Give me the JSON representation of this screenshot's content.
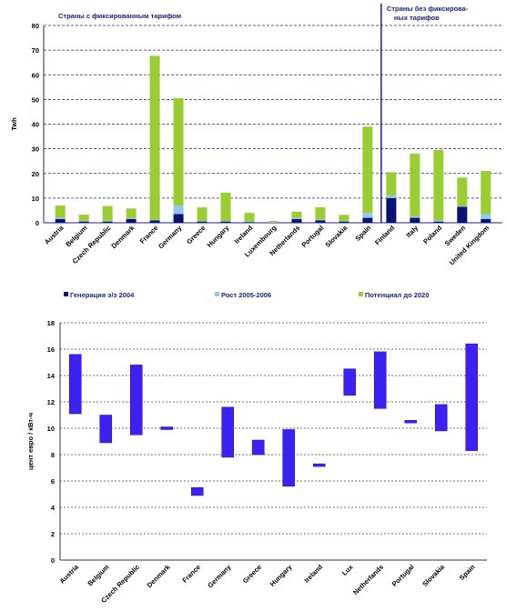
{
  "chart_data": [
    {
      "type": "bar",
      "stacked": true,
      "ylabel": "Twh",
      "ylim": [
        0,
        80
      ],
      "yticks": [
        0,
        10,
        20,
        30,
        40,
        50,
        60,
        70,
        80
      ],
      "grid": true,
      "group_labels": [
        "Страны с фиксированным тарифом",
        "Страны без фиксирова-ных тарифов"
      ],
      "groups": [
        14,
        5
      ],
      "categories": [
        "Austria",
        "Belgium",
        "Czech Republic",
        "Denmark",
        "France",
        "Germany",
        "Greece",
        "Hungary",
        "Ireland",
        "Luxembourg",
        "Netherlands",
        "Portugal",
        "Slovakia",
        "Spain",
        "Finland",
        "Italy",
        "Poland",
        "Sweden",
        "United Kingdom"
      ],
      "series": [
        {
          "name": "Генерация э/э 2004",
          "color": "#0a1172",
          "values": [
            1.5,
            0.5,
            0.5,
            1.5,
            1,
            3.5,
            0.5,
            0.5,
            0.3,
            0.1,
            1.5,
            1,
            0.5,
            2,
            10,
            2,
            0.5,
            6.5,
            1.5
          ]
        },
        {
          "name": "Рост 2005-2006",
          "color": "#8ec8f2",
          "values": [
            0.5,
            0.3,
            0.3,
            0.3,
            0.2,
            3.5,
            0.2,
            0.2,
            0.2,
            0.1,
            0.5,
            0.3,
            0.2,
            2,
            1,
            0.5,
            0.5,
            0.3,
            2
          ]
        },
        {
          "name": "Потенциал до 2020",
          "color": "#9acd32",
          "values": [
            5,
            2.5,
            6,
            4,
            66.5,
            43.5,
            5.5,
            11.5,
            3.5,
            0.5,
            2.5,
            5,
            2.5,
            35,
            9.5,
            25.5,
            28.5,
            11.5,
            17.5
          ]
        }
      ]
    },
    {
      "type": "bar",
      "floating": true,
      "ylabel": "цент евро / кВт-ч",
      "ylim": [
        0,
        18
      ],
      "yticks": [
        0,
        2,
        4,
        6,
        8,
        10,
        12,
        14,
        16,
        18
      ],
      "grid": true,
      "color": "#3b22f2",
      "categories": [
        "Austria",
        "Belgium",
        "Czech Republic",
        "Denmark",
        "France",
        "Germany",
        "Greece",
        "Hungary",
        "Ireland",
        "Lux",
        "Netherlands",
        "Portugal",
        "Slovakia",
        "Spain"
      ],
      "ranges": [
        [
          11.1,
          15.6
        ],
        [
          8.9,
          11.0
        ],
        [
          9.5,
          14.8
        ],
        [
          9.9,
          10.1
        ],
        [
          4.9,
          5.5
        ],
        [
          7.8,
          11.6
        ],
        [
          8.0,
          9.1
        ],
        [
          5.6,
          9.9
        ],
        [
          7.1,
          7.3
        ],
        [
          12.5,
          14.5
        ],
        [
          11.5,
          15.8
        ],
        [
          10.4,
          10.6
        ],
        [
          9.8,
          11.8
        ],
        [
          8.3,
          16.4
        ]
      ]
    }
  ]
}
